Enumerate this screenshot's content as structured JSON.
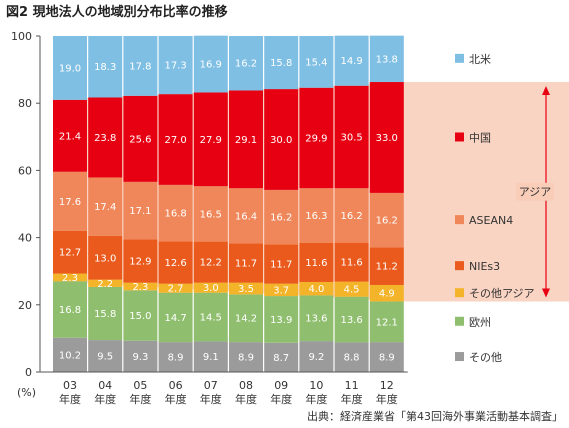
{
  "title": "図2 現地法人の地域別分布比率の推移",
  "unit": "(%)",
  "source": "出典：経済産業省「第43回海外事業活動基本調査」",
  "bracket_label": "アジア",
  "chart_data": {
    "type": "bar",
    "stacked": true,
    "categories": [
      "03",
      "04",
      "05",
      "06",
      "07",
      "08",
      "09",
      "10",
      "11",
      "12"
    ],
    "category_suffix": "年度",
    "ylim": [
      0,
      100
    ],
    "yticks": [
      0,
      20,
      40,
      60,
      80,
      100
    ],
    "grid": false,
    "legend_position": "right",
    "series": [
      {
        "name": "その他",
        "color": "#9b9b9b",
        "values": [
          10.2,
          9.5,
          9.3,
          8.9,
          9.1,
          8.9,
          8.7,
          9.2,
          8.8,
          8.9
        ]
      },
      {
        "name": "欧州",
        "color": "#8fbf6e",
        "values": [
          16.8,
          15.8,
          15.0,
          14.7,
          14.5,
          14.2,
          13.9,
          13.6,
          13.6,
          12.1
        ]
      },
      {
        "name": "その他アジア",
        "color": "#f4b42a",
        "values": [
          2.3,
          2.2,
          2.3,
          2.7,
          3.0,
          3.5,
          3.7,
          4.0,
          4.5,
          4.9
        ]
      },
      {
        "name": "NIEs3",
        "color": "#ea5a1c",
        "values": [
          12.7,
          13.0,
          12.9,
          12.6,
          12.2,
          11.7,
          11.7,
          11.6,
          11.6,
          11.2
        ]
      },
      {
        "name": "ASEAN4",
        "color": "#f0875a",
        "values": [
          17.6,
          17.4,
          17.1,
          16.8,
          16.5,
          16.4,
          16.2,
          16.3,
          16.2,
          16.2
        ]
      },
      {
        "name": "中国",
        "color": "#e60012",
        "values": [
          21.4,
          23.8,
          25.6,
          27.0,
          27.9,
          29.1,
          30.0,
          29.9,
          30.5,
          33.0
        ]
      },
      {
        "name": "北米",
        "color": "#7fbfe4",
        "values": [
          19.0,
          18.3,
          17.8,
          17.3,
          16.9,
          16.2,
          15.8,
          15.4,
          14.9,
          13.8
        ]
      }
    ],
    "legend_order": [
      "北米",
      "中国",
      "ASEAN4",
      "NIEs3",
      "その他アジア",
      "欧州",
      "その他"
    ]
  }
}
